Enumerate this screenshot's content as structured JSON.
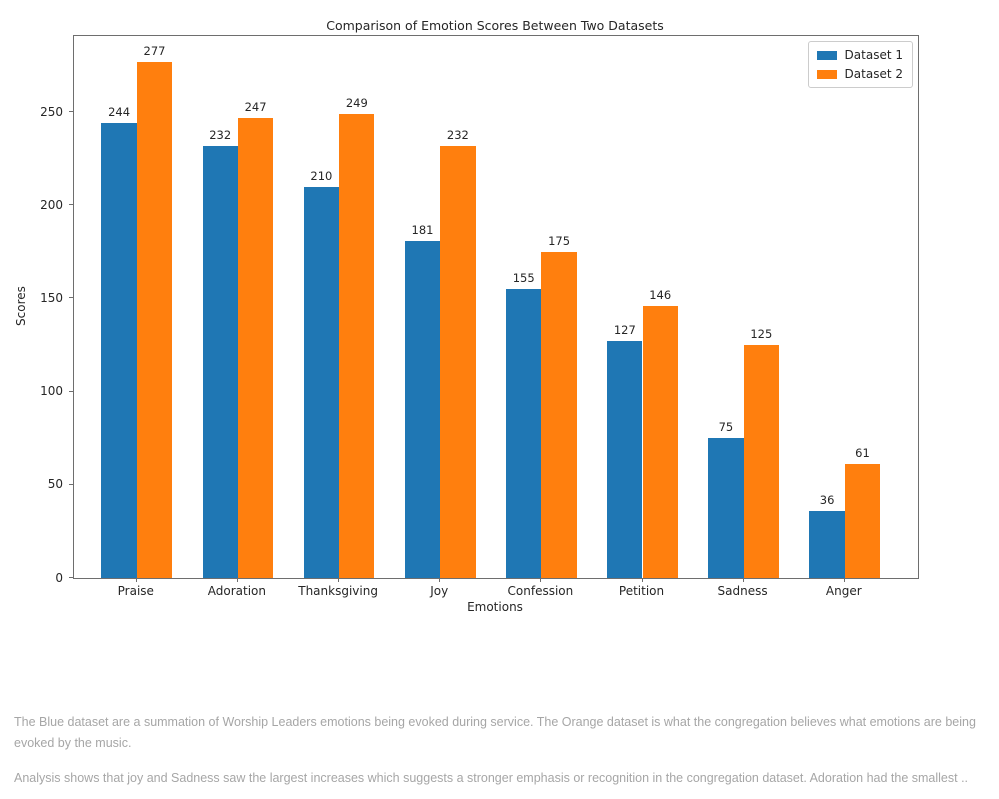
{
  "chart_data": {
    "type": "bar",
    "title": "Comparison of Emotion Scores Between Two Datasets",
    "xlabel": "Emotions",
    "ylabel": "Scores",
    "categories": [
      "Praise",
      "Adoration",
      "Thanksgiving",
      "Joy",
      "Confession",
      "Petition",
      "Sadness",
      "Anger"
    ],
    "series": [
      {
        "name": "Dataset 1",
        "color": "#1f77b4",
        "values": [
          244,
          232,
          210,
          181,
          155,
          127,
          75,
          36
        ]
      },
      {
        "name": "Dataset 2",
        "color": "#ff7f0e",
        "values": [
          277,
          247,
          249,
          232,
          175,
          146,
          125,
          61
        ]
      }
    ],
    "ylim": [
      0,
      291
    ],
    "yticks": [
      0,
      50,
      100,
      150,
      200,
      250
    ],
    "grid": false,
    "legend_position": "upper right",
    "bar_value_labels": true
  },
  "notes": {
    "paragraph1": "The Blue dataset are a summation of Worship Leaders emotions being evoked during service. The Orange dataset is what the congregation believes what emotions are being evoked by the music.",
    "paragraph2": "Analysis shows that joy and Sadness saw the largest increases which suggests a stronger emphasis or recognition in the congregation dataset. Adoration had the smallest .."
  }
}
